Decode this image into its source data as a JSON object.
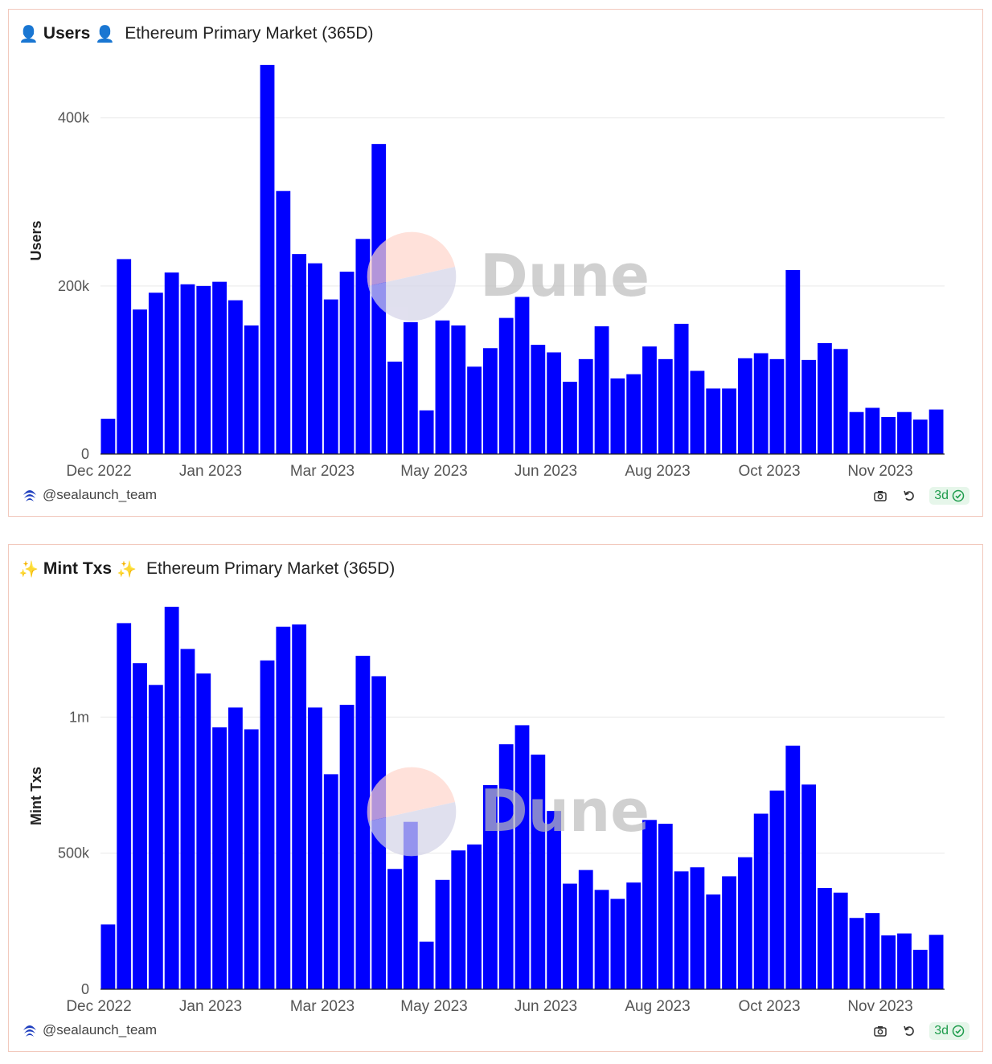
{
  "colors": {
    "bar": "#0000ff",
    "grid": "#e9e9e9",
    "accent_green": "#1e9c4c",
    "watermark_circle_top": "#ffd5cb",
    "watermark_circle_bottom": "#d4d3e8"
  },
  "watermark": "Dune",
  "chart_data": [
    {
      "type": "bar",
      "header_left_emoji": "👤",
      "title": "Users",
      "header_right_emoji": "👤",
      "subtitle": "Ethereum Primary Market (365D)",
      "xlabel": "",
      "ylabel": "Users",
      "ylim": [
        0,
        460000
      ],
      "yticks": [
        0,
        200000,
        400000
      ],
      "ytick_labels": [
        "0",
        "200k",
        "400k"
      ],
      "x_tick_labels": [
        "Dec 2022",
        "Jan 2023",
        "Mar 2023",
        "May 2023",
        "Jun 2023",
        "Aug 2023",
        "Oct 2023",
        "Nov 2023"
      ],
      "values": [
        42000,
        232000,
        172000,
        192000,
        216000,
        202000,
        200000,
        205000,
        183000,
        153000,
        463000,
        313000,
        238000,
        227000,
        184000,
        217000,
        256000,
        369000,
        110000,
        157000,
        52000,
        159000,
        153000,
        104000,
        126000,
        162000,
        187000,
        130000,
        121000,
        86000,
        113000,
        152000,
        90000,
        95000,
        128000,
        113000,
        155000,
        99000,
        78000,
        78000,
        114000,
        120000,
        113000,
        219000,
        112000,
        132000,
        125000,
        50000,
        55000,
        44000,
        50000,
        41000,
        53000
      ],
      "footer_user": "@sealaunch_team",
      "footer_badge": "3d"
    },
    {
      "type": "bar",
      "header_left_emoji": "✨",
      "title": "Mint Txs",
      "header_right_emoji": "✨",
      "subtitle": "Ethereum Primary Market (365D)",
      "xlabel": "",
      "ylabel": "Mint Txs",
      "ylim": [
        0,
        1420000
      ],
      "yticks": [
        0,
        500000,
        1000000
      ],
      "ytick_labels": [
        "0",
        "500k",
        "1m"
      ],
      "x_tick_labels": [
        "Dec 2022",
        "Jan 2023",
        "Mar 2023",
        "May 2023",
        "Jun 2023",
        "Aug 2023",
        "Oct 2023",
        "Nov 2023"
      ],
      "values": [
        238000,
        1345000,
        1198000,
        1118000,
        1405000,
        1250000,
        1160000,
        962000,
        1035000,
        955000,
        1208000,
        1332000,
        1340000,
        1035000,
        790000,
        1045000,
        1225000,
        1150000,
        442000,
        615000,
        175000,
        402000,
        510000,
        532000,
        750000,
        900000,
        970000,
        862000,
        655000,
        388000,
        438000,
        365000,
        332000,
        392000,
        622000,
        608000,
        433000,
        448000,
        348000,
        415000,
        485000,
        645000,
        730000,
        895000,
        752000,
        372000,
        355000,
        262000,
        280000,
        198000,
        205000,
        145000,
        200000
      ],
      "footer_user": "@sealaunch_team",
      "footer_badge": "3d"
    }
  ]
}
